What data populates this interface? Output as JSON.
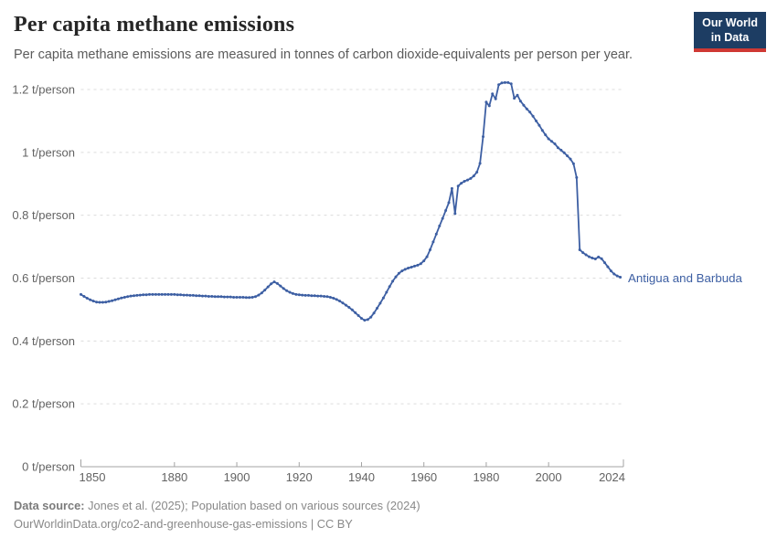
{
  "header": {
    "title": "Per capita methane emissions",
    "subtitle": "Per capita methane emissions are measured in tonnes of carbon dioxide-equivalents per person per year.",
    "logo": {
      "line1": "Our World",
      "line2": "in Data",
      "bg_color": "#1d3d63",
      "bar_color": "#cf3934"
    }
  },
  "chart_data": {
    "type": "line",
    "title": "Per capita methane emissions",
    "unit": "t/person",
    "xlabel": "",
    "ylabel": "t/person",
    "xlim": [
      1850,
      2024
    ],
    "ylim": [
      0,
      1.2
    ],
    "grid": "horizontal-dashed",
    "legend_position": "end-of-line-label",
    "x_ticks": [
      1850,
      1880,
      1900,
      1920,
      1940,
      1960,
      1980,
      2000,
      2024
    ],
    "y_ticks": [
      {
        "value": 0,
        "label": "0 t/person"
      },
      {
        "value": 0.2,
        "label": "0.2 t/person"
      },
      {
        "value": 0.4,
        "label": "0.4 t/person"
      },
      {
        "value": 0.6,
        "label": "0.6 t/person"
      },
      {
        "value": 0.8,
        "label": "0.8 t/person"
      },
      {
        "value": 1,
        "label": "1 t/person"
      },
      {
        "value": 1.2,
        "label": "1.2 t/person"
      }
    ],
    "series": [
      {
        "name": "Antigua and Barbuda",
        "color": "#3d5fa3",
        "x_start": 1850,
        "x_step": 1,
        "x_end": 2023,
        "values": [
          0.548,
          0.542,
          0.536,
          0.531,
          0.527,
          0.524,
          0.523,
          0.523,
          0.524,
          0.526,
          0.528,
          0.531,
          0.534,
          0.537,
          0.539,
          0.541,
          0.543,
          0.544,
          0.545,
          0.546,
          0.547,
          0.547,
          0.548,
          0.548,
          0.548,
          0.548,
          0.548,
          0.548,
          0.548,
          0.548,
          0.548,
          0.547,
          0.547,
          0.546,
          0.546,
          0.545,
          0.545,
          0.544,
          0.544,
          0.543,
          0.543,
          0.542,
          0.542,
          0.541,
          0.541,
          0.541,
          0.54,
          0.54,
          0.54,
          0.539,
          0.539,
          0.539,
          0.539,
          0.538,
          0.538,
          0.539,
          0.541,
          0.546,
          0.553,
          0.562,
          0.572,
          0.582,
          0.588,
          0.583,
          0.575,
          0.567,
          0.56,
          0.555,
          0.551,
          0.548,
          0.547,
          0.546,
          0.545,
          0.545,
          0.544,
          0.544,
          0.543,
          0.543,
          0.542,
          0.541,
          0.539,
          0.536,
          0.532,
          0.527,
          0.521,
          0.514,
          0.507,
          0.499,
          0.49,
          0.481,
          0.472,
          0.466,
          0.468,
          0.476,
          0.489,
          0.504,
          0.52,
          0.537,
          0.555,
          0.573,
          0.59,
          0.604,
          0.615,
          0.623,
          0.628,
          0.632,
          0.635,
          0.638,
          0.641,
          0.646,
          0.655,
          0.668,
          0.69,
          0.715,
          0.74,
          0.766,
          0.79,
          0.815,
          0.84,
          0.885,
          0.805,
          0.893,
          0.902,
          0.908,
          0.912,
          0.917,
          0.925,
          0.937,
          0.965,
          1.05,
          1.16,
          1.148,
          1.186,
          1.17,
          1.215,
          1.221,
          1.222,
          1.222,
          1.218,
          1.172,
          1.182,
          1.163,
          1.15,
          1.138,
          1.128,
          1.115,
          1.1,
          1.086,
          1.07,
          1.056,
          1.043,
          1.035,
          1.027,
          1.015,
          1.007,
          0.999,
          0.989,
          0.979,
          0.964,
          0.92,
          0.69,
          0.681,
          0.674,
          0.668,
          0.664,
          0.661,
          0.667,
          0.662,
          0.649,
          0.636,
          0.623,
          0.613,
          0.607,
          0.603
        ]
      }
    ],
    "style": {
      "gridline_color": "#dcdcdc",
      "axis_color": "#a3a3a3",
      "tick_label_color": "#636363"
    }
  },
  "footer": {
    "source_label": "Data source:",
    "source_text": " Jones et al. (2025); Population based on various sources (2024)",
    "url_line": "OurWorldinData.org/co2-and-greenhouse-gas-emissions | CC BY"
  }
}
